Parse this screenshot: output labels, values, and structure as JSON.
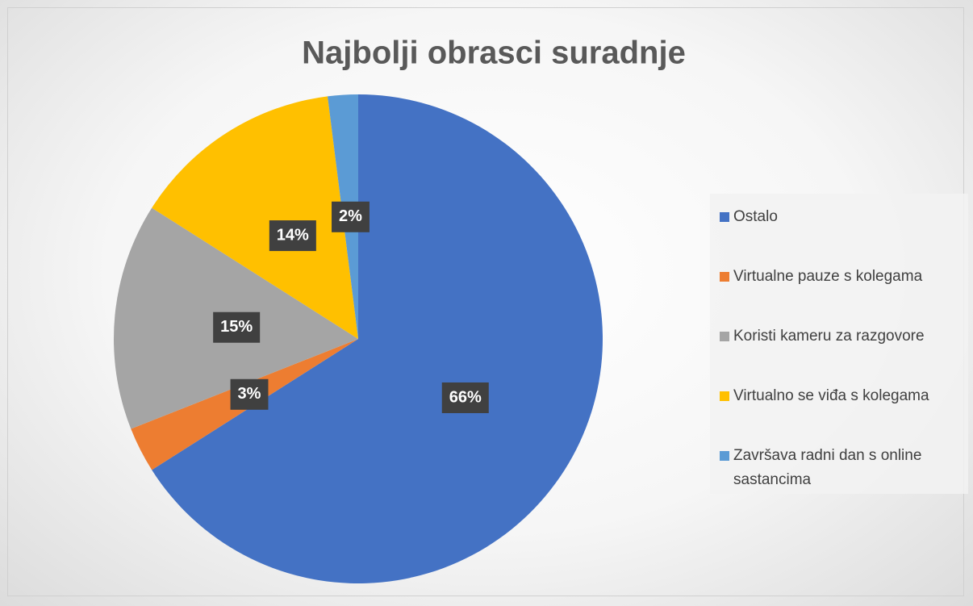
{
  "chart_data": {
    "type": "pie",
    "title": "Najbolji obrasci suradnje",
    "categories": [
      "Ostalo",
      "Virtualne pauze s kolegama",
      "Koristi kameru za razgovore",
      "Virtualno se viđa s kolegama",
      "Završava radni dan s online sastancima"
    ],
    "values": [
      66,
      3,
      15,
      14,
      2
    ],
    "value_labels": [
      "66%",
      "3%",
      "15%",
      "14%",
      "2%"
    ],
    "colors": [
      "#4472c4",
      "#ed7d31",
      "#a5a5a5",
      "#ffc000",
      "#5b9bd5"
    ],
    "legend": "right"
  }
}
